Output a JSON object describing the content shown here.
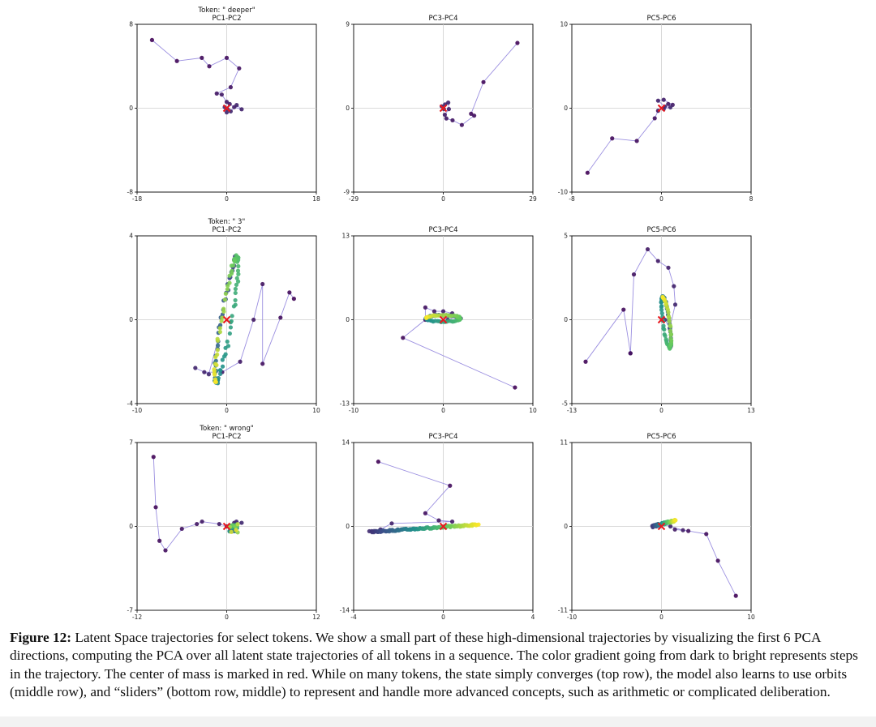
{
  "figure": {
    "caption_label": "Figure 12:",
    "caption_text": "Latent Space trajectories for select tokens. We show a small part of these high-dimensional trajectories by visualizing the first 6 PCA directions, computing the PCA over all latent state trajectories of all tokens in a sequence. The color gradient going from dark to bright represents steps in the trajectory. The center of mass is marked in red. While on many tokens, the state simply converges (top row), the model also learns to use orbits (middle row), and “sliders” (bottom row, middle) to represent and handle more advanced concepts, such as arithmetic or complicated deliberation."
  },
  "colors": {
    "trajectory_line": "#9b8fe0",
    "center_marker": "#e8191f",
    "crosshair": "#cfcfcf",
    "colormap": [
      "#440154",
      "#3b528b",
      "#21918c",
      "#5ec962",
      "#fde725"
    ]
  },
  "chart_data": [
    {
      "type": "scatter",
      "row": 0,
      "col": 0,
      "title": "PC1-PC2",
      "token_label": "Token: \" deeper\"",
      "xlim": [
        -18,
        18
      ],
      "ylim": [
        -8,
        8
      ],
      "xticks": [
        "-18",
        "0",
        "18"
      ],
      "yticks": [
        "-8",
        "0",
        "8"
      ],
      "trajectory": [
        [
          -15,
          6.5
        ],
        [
          -10,
          4.5
        ],
        [
          -5,
          4.8
        ],
        [
          -3.5,
          4
        ],
        [
          0,
          4.8
        ],
        [
          2.5,
          3.8
        ],
        [
          0.8,
          2
        ],
        [
          -2,
          1.4
        ],
        [
          -1,
          1.3
        ],
        [
          0,
          0.6
        ],
        [
          0.6,
          0.4
        ],
        [
          1.5,
          0.1
        ],
        [
          3,
          -0.1
        ],
        [
          2,
          0.3
        ],
        [
          0.8,
          -0.3
        ],
        [
          0,
          -0.4
        ],
        [
          -0.4,
          0.1
        ],
        [
          0.2,
          -0.1
        ]
      ],
      "cluster": []
    },
    {
      "type": "scatter",
      "row": 0,
      "col": 1,
      "title": "PC3-PC4",
      "token_label": "",
      "xlim": [
        -29,
        29
      ],
      "ylim": [
        -9,
        9
      ],
      "xticks": [
        "-29",
        "0",
        "29"
      ],
      "yticks": [
        "-9",
        "0",
        "9"
      ],
      "trajectory": [
        [
          24,
          7
        ],
        [
          13,
          2.8
        ],
        [
          9,
          -0.6
        ],
        [
          10,
          -0.8
        ],
        [
          6,
          -1.8
        ],
        [
          3,
          -1.3
        ],
        [
          1,
          -1.1
        ],
        [
          0.5,
          -0.7
        ],
        [
          1.8,
          -0.1
        ],
        [
          1.6,
          0.6
        ],
        [
          0.6,
          0.4
        ],
        [
          -0.5,
          0.2
        ],
        [
          0.2,
          -0.1
        ]
      ],
      "cluster": []
    },
    {
      "type": "scatter",
      "row": 0,
      "col": 2,
      "title": "PC5-PC6",
      "token_label": "",
      "xlim": [
        -8,
        8
      ],
      "ylim": [
        -10,
        10
      ],
      "xticks": [
        "-8",
        "0",
        "8"
      ],
      "yticks": [
        "-10",
        "0",
        "10"
      ],
      "trajectory": [
        [
          -6.6,
          -7.7
        ],
        [
          -4.4,
          -3.6
        ],
        [
          -2.2,
          -3.9
        ],
        [
          -0.6,
          -1.2
        ],
        [
          -0.3,
          -0.3
        ],
        [
          0.6,
          0.5
        ],
        [
          1,
          0.4
        ],
        [
          0.2,
          1
        ],
        [
          -0.3,
          0.9
        ],
        [
          0.3,
          0.2
        ],
        [
          0.8,
          0.1
        ],
        [
          0.2,
          -0.1
        ]
      ],
      "cluster": []
    },
    {
      "type": "scatter",
      "row": 1,
      "col": 0,
      "title": "PC1-PC2",
      "token_label": "Token: \" 3\"",
      "xlim": [
        -10,
        10
      ],
      "ylim": [
        -4,
        4
      ],
      "xticks": [
        "-10",
        "0",
        "10"
      ],
      "yticks": [
        "-4",
        "0",
        "4"
      ],
      "trajectory": [
        [
          7.5,
          1
        ],
        [
          7,
          1.3
        ],
        [
          6,
          0.1
        ],
        [
          4,
          -2.1
        ],
        [
          4,
          1.7
        ],
        [
          3,
          0
        ],
        [
          1.5,
          -2
        ],
        [
          -0.5,
          -2.5
        ],
        [
          -2.5,
          -2.5
        ],
        [
          -3.5,
          -2.3
        ],
        [
          -2,
          -2.6
        ],
        [
          -1,
          -1
        ]
      ],
      "cluster": {
        "kind": "ellipse",
        "cx": 0,
        "cy": 0,
        "rx": 3.2,
        "ry": 0.55,
        "angle": 68,
        "n": 110
      }
    },
    {
      "type": "scatter",
      "row": 1,
      "col": 1,
      "title": "PC3-PC4",
      "token_label": "",
      "xlim": [
        -10,
        10
      ],
      "ylim": [
        -13,
        13
      ],
      "xticks": [
        "-10",
        "0",
        "10"
      ],
      "yticks": [
        "-13",
        "0",
        "13"
      ],
      "trajectory": [
        [
          8,
          -10.5
        ],
        [
          -4.5,
          -2.8
        ],
        [
          -2,
          0
        ],
        [
          -2,
          1.9
        ],
        [
          -1,
          1.3
        ],
        [
          0,
          1.3
        ],
        [
          1,
          1
        ],
        [
          1.5,
          0.5
        ],
        [
          0.5,
          0
        ]
      ],
      "cluster": {
        "kind": "ellipse",
        "cx": 0,
        "cy": 0.2,
        "rx": 1.9,
        "ry": 0.5,
        "angle": 0,
        "n": 80
      }
    },
    {
      "type": "scatter",
      "row": 1,
      "col": 2,
      "title": "PC5-PC6",
      "token_label": "",
      "xlim": [
        -13,
        13
      ],
      "ylim": [
        -5,
        5
      ],
      "xticks": [
        "-13",
        "0",
        "13"
      ],
      "yticks": [
        "-5",
        "0",
        "5"
      ],
      "trajectory": [
        [
          -11,
          -2.5
        ],
        [
          -5.5,
          0.6
        ],
        [
          -4.5,
          -2
        ],
        [
          -4.5,
          -2
        ],
        [
          -4,
          2.7
        ],
        [
          -2,
          4.2
        ],
        [
          -0.5,
          3.5
        ],
        [
          1,
          3.1
        ],
        [
          1.8,
          2
        ],
        [
          2,
          0.9
        ],
        [
          1.2,
          -0.5
        ],
        [
          0.5,
          0
        ]
      ],
      "cluster": {
        "kind": "ellipse",
        "cx": 0.7,
        "cy": -0.15,
        "rx": 1.6,
        "ry": 0.45,
        "angle": -70,
        "n": 80
      }
    },
    {
      "type": "scatter",
      "row": 2,
      "col": 0,
      "title": "PC1-PC2",
      "token_label": "Token: \" wrong\"",
      "xlim": [
        -12,
        12
      ],
      "ylim": [
        -7,
        7
      ],
      "xticks": [
        "-12",
        "0",
        "12"
      ],
      "yticks": [
        "-7",
        "0",
        "7"
      ],
      "trajectory": [
        [
          -9.8,
          5.8
        ],
        [
          -9.5,
          1.6
        ],
        [
          -9,
          -1.2
        ],
        [
          -8.2,
          -2
        ],
        [
          -6,
          -0.2
        ],
        [
          -4,
          0.2
        ],
        [
          -3.3,
          0.4
        ],
        [
          -1,
          0.2
        ],
        [
          0,
          0
        ],
        [
          1,
          0.3
        ],
        [
          1.3,
          0.4
        ],
        [
          2,
          0.3
        ],
        [
          1,
          -0.1
        ]
      ],
      "cluster": {
        "kind": "blob",
        "cx": 0.9,
        "cy": -0.15,
        "rx": 0.6,
        "ry": 0.35,
        "n": 25
      }
    },
    {
      "type": "scatter",
      "row": 2,
      "col": 1,
      "title": "PC3-PC4",
      "token_label": "",
      "xlim": [
        -4,
        4
      ],
      "ylim": [
        -14,
        14
      ],
      "xticks": [
        "-4",
        "0",
        "4"
      ],
      "yticks": [
        "-14",
        "0",
        "14"
      ],
      "trajectory": [
        [
          -2.9,
          10.8
        ],
        [
          0.3,
          6.8
        ],
        [
          -0.8,
          2.2
        ],
        [
          -0.2,
          1
        ],
        [
          0.4,
          0.8
        ],
        [
          -2.3,
          0.5
        ],
        [
          -2.8,
          -0.5
        ],
        [
          -3.3,
          -0.8
        ]
      ],
      "cluster": {
        "kind": "line",
        "x0": -3.2,
        "y0": -0.9,
        "x1": 1.6,
        "y1": 0.3,
        "n": 110,
        "jitter": 0.25
      }
    },
    {
      "type": "scatter",
      "row": 2,
      "col": 2,
      "title": "PC5-PC6",
      "token_label": "",
      "xlim": [
        -10,
        10
      ],
      "ylim": [
        -11,
        11
      ],
      "xticks": [
        "-10",
        "0",
        "10"
      ],
      "yticks": [
        "-11",
        "0",
        "11"
      ],
      "trajectory": [
        [
          8.3,
          -9.1
        ],
        [
          6.3,
          -4.5
        ],
        [
          5,
          -1
        ],
        [
          3,
          -0.6
        ],
        [
          1.5,
          -0.4
        ],
        [
          2.4,
          -0.5
        ],
        [
          1,
          0
        ],
        [
          0,
          0.3
        ],
        [
          -0.4,
          0.1
        ]
      ],
      "cluster": {
        "kind": "line",
        "x0": -1,
        "y0": 0,
        "x1": 1.6,
        "y1": 0.8,
        "n": 55,
        "jitter": 0.25
      }
    }
  ]
}
